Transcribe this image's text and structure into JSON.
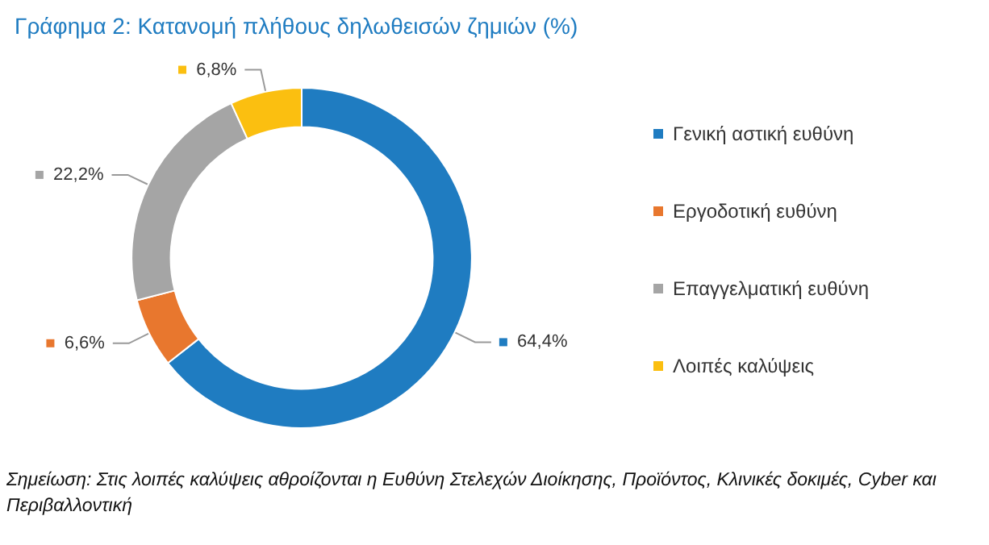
{
  "chart_data": {
    "type": "donut",
    "title": "Γράφημα 2: Κατανομή πλήθους δηλωθεισών ζημιών (%)",
    "categories": [
      "Γενική αστική ευθύνη",
      "Εργοδοτική ευθύνη",
      "Επαγγελματική ευθύνη",
      "Λοιπές καλύψεις"
    ],
    "values": [
      64.4,
      6.6,
      22.2,
      6.8
    ],
    "colors": [
      "#1f7cc1",
      "#e8772e",
      "#a5a5a5",
      "#fbbf10"
    ],
    "value_labels": [
      "64,4%",
      "6,6%",
      "22,2%",
      "6,8%"
    ],
    "legend": "right",
    "annotations": [
      "Σημείωση: Στις λοιπές καλύψεις αθροίζονται η Ευθύνη Στελεχών Διοίκησης, Προϊόντος, Κλινικές δοκιμές, Cyber και Περιβαλλοντική"
    ]
  }
}
